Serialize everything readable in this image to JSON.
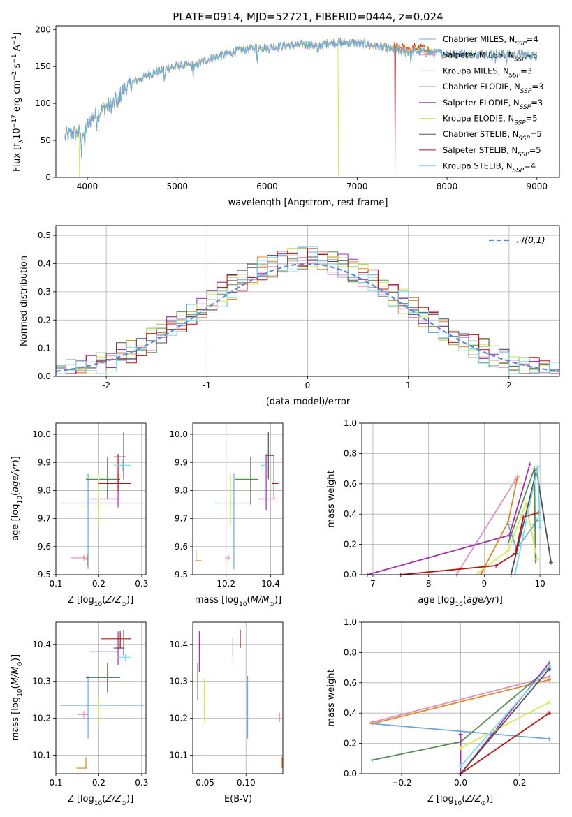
{
  "title": "PLATE=0914, MJD=52721, FIBERID=0444, z=0.024",
  "colors": {
    "c1": "#6fa8d6",
    "c2": "#e58fc0",
    "c3": "#d88a2c",
    "c4": "#5a8a5a",
    "c5": "#a030b0",
    "c6": "#d6e860",
    "c7": "#505050",
    "c8": "#b01818",
    "c9": "#80d8e8",
    "gauss": "#5b8bd9"
  },
  "chart_data": [
    {
      "id": "spectrum",
      "type": "line",
      "xlabel": "wavelength [Angstrom, rest frame]",
      "ylabel": "Flux [f_λ 10^-17 erg cm^-2 s^-1 A^-1]",
      "xlim": [
        3650,
        9250
      ],
      "ylim": [
        0,
        205
      ],
      "xticks": [
        4000,
        5000,
        6000,
        7000,
        8000,
        9000
      ],
      "yticks": [
        0,
        50,
        100,
        150,
        200
      ],
      "series": [
        {
          "name": "Chabrier MILES, N_SSP=4",
          "color": "#6fa8d6"
        },
        {
          "name": "Salpeter MILES, N_SSP=3",
          "color": "#e58fc0"
        },
        {
          "name": "Kroupa MILES, N_SSP=3",
          "color": "#d88a2c"
        },
        {
          "name": "Chabrier ELODIE, N_SSP=3",
          "color": "#5a8a5a"
        },
        {
          "name": "Salpeter ELODIE, N_SSP=3",
          "color": "#a030b0"
        },
        {
          "name": "Kroupa ELODIE, N_SSP=5",
          "color": "#d6e860"
        },
        {
          "name": "Chabrier STELIB, N_SSP=5",
          "color": "#505050"
        },
        {
          "name": "Salpeter STELIB, N_SSP=5",
          "color": "#b01818"
        },
        {
          "name": "Kroupa STELIB, N_SSP=4",
          "color": "#80d8e8"
        }
      ],
      "continuum": [
        [
          3750,
          55
        ],
        [
          3850,
          60
        ],
        [
          3950,
          60
        ],
        [
          4050,
          80
        ],
        [
          4200,
          95
        ],
        [
          4300,
          100
        ],
        [
          4400,
          118
        ],
        [
          4500,
          128
        ],
        [
          4700,
          140
        ],
        [
          4900,
          148
        ],
        [
          5100,
          152
        ],
        [
          5200,
          150
        ],
        [
          5300,
          158
        ],
        [
          5500,
          165
        ],
        [
          5700,
          172
        ],
        [
          5900,
          176
        ],
        [
          6000,
          175
        ],
        [
          6200,
          178
        ],
        [
          6400,
          180
        ],
        [
          6550,
          178
        ],
        [
          6700,
          182
        ],
        [
          6900,
          182
        ],
        [
          7100,
          180
        ],
        [
          7300,
          175
        ],
        [
          7500,
          170
        ],
        [
          7700,
          170
        ],
        [
          7900,
          168
        ],
        [
          8100,
          168
        ],
        [
          8300,
          166
        ],
        [
          8500,
          168
        ],
        [
          8700,
          166
        ],
        [
          8900,
          166
        ],
        [
          9000,
          164
        ]
      ],
      "dropouts": [
        {
          "series": 5,
          "x": 3910
        },
        {
          "series": 5,
          "x": 6790
        },
        {
          "series": 7,
          "x": 7420
        }
      ]
    },
    {
      "id": "residuals",
      "type": "line",
      "xlabel": "(data-model)/error",
      "ylabel": "Normed distribution",
      "xlim": [
        -2.5,
        2.5
      ],
      "ylim": [
        0,
        0.535
      ],
      "xticks": [
        -2,
        -1,
        0,
        1,
        2
      ],
      "yticks": [
        0.0,
        0.1,
        0.2,
        0.3,
        0.4,
        0.5
      ],
      "legend": "𝒩(0,1)"
    },
    {
      "id": "age-vs-Z",
      "type": "scatter",
      "xlabel": "Z [log10(Z/Z☉)]",
      "ylabel": "age  [log10(age/yr)]",
      "xlim": [
        0.1,
        0.31
      ],
      "ylim": [
        9.5,
        10.04
      ],
      "xticks": [
        0.1,
        0.2,
        0.3
      ],
      "yticks": [
        9.5,
        9.6,
        9.7,
        9.8,
        9.9,
        10.0
      ],
      "points": [
        {
          "c": 0,
          "x": 0.175,
          "y": 9.755,
          "xl": 0.11,
          "xh": 0.305,
          "yl": 9.52,
          "yh": 9.86
        },
        {
          "c": 1,
          "x": 0.165,
          "y": 9.56,
          "xl": 0.135,
          "xh": 0.175,
          "yl": 9.55,
          "yh": 9.57
        },
        {
          "c": 2,
          "x": 0.173,
          "y": 9.555,
          "xl": 0.168,
          "xh": 0.178,
          "yl": 9.53,
          "yh": 9.575
        },
        {
          "c": 3,
          "x": 0.22,
          "y": 9.84,
          "xl": 0.17,
          "xh": 0.25,
          "yl": 9.77,
          "yh": 9.92
        },
        {
          "c": 4,
          "x": 0.245,
          "y": 9.77,
          "xl": 0.18,
          "xh": 0.245,
          "yl": 9.74,
          "yh": 9.86
        },
        {
          "c": 5,
          "x": 0.2,
          "y": 9.745,
          "xl": 0.155,
          "xh": 0.22,
          "yl": 9.68,
          "yh": 9.86
        },
        {
          "c": 6,
          "x": 0.258,
          "y": 9.92,
          "xl": 0.235,
          "xh": 0.262,
          "yl": 9.84,
          "yh": 10.01
        },
        {
          "c": 7,
          "x": 0.245,
          "y": 9.825,
          "xl": 0.2,
          "xh": 0.275,
          "yl": 9.8,
          "yh": 9.93
        },
        {
          "c": 8,
          "x": 0.255,
          "y": 9.89,
          "xl": 0.235,
          "xh": 0.275,
          "yl": 9.87,
          "yh": 9.91
        }
      ]
    },
    {
      "id": "age-vs-mass",
      "type": "scatter",
      "xlabel": "mass [log10(M/M☉)]",
      "xlim": [
        10.05,
        10.455
      ],
      "ylim": [
        9.5,
        10.04
      ],
      "xticks": [
        10.2,
        10.4
      ],
      "yticks": [
        9.5,
        9.6,
        9.7,
        9.8,
        9.9,
        10.0
      ],
      "points": [
        {
          "c": 0,
          "x": 10.235,
          "y": 9.755,
          "xl": 10.15,
          "xh": 10.31,
          "yl": 9.52,
          "yh": 9.86
        },
        {
          "c": 1,
          "x": 10.21,
          "y": 9.56,
          "xl": 10.195,
          "xh": 10.22,
          "yl": 9.55,
          "yh": 9.57
        },
        {
          "c": 2,
          "x": 10.065,
          "y": 9.55,
          "xl": 10.06,
          "xh": 10.09,
          "yl": 9.55,
          "yh": 9.59
        },
        {
          "c": 3,
          "x": 10.31,
          "y": 9.84,
          "xl": 10.24,
          "xh": 10.345,
          "yl": 9.75,
          "yh": 9.92
        },
        {
          "c": 4,
          "x": 10.38,
          "y": 9.77,
          "xl": 10.34,
          "xh": 10.425,
          "yl": 9.73,
          "yh": 9.93
        },
        {
          "c": 5,
          "x": 10.22,
          "y": 9.745,
          "xl": 10.2,
          "xh": 10.25,
          "yl": 9.68,
          "yh": 9.86
        },
        {
          "c": 6,
          "x": 10.39,
          "y": 9.925,
          "xl": 10.38,
          "xh": 10.415,
          "yl": 9.84,
          "yh": 10.01
        },
        {
          "c": 7,
          "x": 10.415,
          "y": 9.825,
          "xl": 10.405,
          "xh": 10.435,
          "yl": 9.77,
          "yh": 9.93
        },
        {
          "c": 8,
          "x": 10.365,
          "y": 9.89,
          "xl": 10.355,
          "xh": 10.38,
          "yl": 9.87,
          "yh": 9.91
        }
      ]
    },
    {
      "id": "weight-vs-age",
      "type": "line",
      "xlabel": "age  [log10(age/yr)]",
      "ylabel": "mass weight",
      "xlim": [
        6.8,
        10.35
      ],
      "ylim": [
        0,
        1.0
      ],
      "xticks": [
        7,
        8,
        9,
        10
      ],
      "yticks": [
        0.0,
        0.2,
        0.4,
        0.6,
        0.8,
        1.0
      ],
      "series": [
        {
          "c": 0,
          "pts": [
            [
              9.43,
              0.33
            ],
            [
              9.58,
              0.17
            ],
            [
              9.9,
              0.33
            ],
            [
              9.95,
              0.36
            ],
            [
              10.0,
              0.36
            ]
          ]
        },
        {
          "c": 1,
          "pts": [
            [
              8.5,
              0.0
            ],
            [
              9.57,
              0.63
            ],
            [
              9.6,
              0.64
            ]
          ]
        },
        {
          "c": 2,
          "pts": [
            [
              8.95,
              0.01
            ],
            [
              9.43,
              0.35
            ],
            [
              9.6,
              0.65
            ]
          ]
        },
        {
          "c": 3,
          "pts": [
            [
              9.43,
              0.21
            ],
            [
              9.9,
              0.7
            ],
            [
              9.92,
              0.09
            ]
          ]
        },
        {
          "c": 4,
          "pts": [
            [
              6.9,
              0.0
            ],
            [
              9.45,
              0.26
            ],
            [
              9.82,
              0.73
            ]
          ]
        },
        {
          "c": 5,
          "pts": [
            [
              8.88,
              0.01
            ],
            [
              9.43,
              0.16
            ],
            [
              9.75,
              0.47
            ],
            [
              9.95,
              0.1
            ]
          ]
        },
        {
          "c": 6,
          "pts": [
            [
              9.48,
              0.0
            ],
            [
              9.94,
              0.69
            ],
            [
              10.2,
              0.08
            ]
          ]
        },
        {
          "c": 7,
          "pts": [
            [
              7.5,
              0.0
            ],
            [
              9.21,
              0.06
            ],
            [
              9.56,
              0.14
            ],
            [
              9.7,
              0.38
            ],
            [
              9.98,
              0.41
            ]
          ]
        },
        {
          "c": 8,
          "pts": [
            [
              9.55,
              0.0
            ],
            [
              9.96,
              0.71
            ],
            [
              10.0,
              0.31
            ]
          ]
        }
      ]
    },
    {
      "id": "mass-vs-Z",
      "type": "scatter",
      "xlabel": "Z [log10(Z/Z☉)]",
      "ylabel": "mass [log10(M/M☉)]",
      "xlim": [
        0.1,
        0.31
      ],
      "ylim": [
        10.05,
        10.46
      ],
      "xticks": [
        0.1,
        0.2,
        0.3
      ],
      "yticks": [
        10.1,
        10.2,
        10.3,
        10.4
      ],
      "points": [
        {
          "c": 0,
          "x": 0.175,
          "y": 10.235,
          "xl": 0.11,
          "xh": 0.305,
          "yl": 10.145,
          "yh": 10.315
        },
        {
          "c": 1,
          "x": 0.165,
          "y": 10.21,
          "xl": 0.15,
          "xh": 0.175,
          "yl": 10.2,
          "yh": 10.22
        },
        {
          "c": 2,
          "x": 0.17,
          "y": 10.065,
          "xl": 0.148,
          "xh": 0.172,
          "yl": 10.065,
          "yh": 10.095
        },
        {
          "c": 3,
          "x": 0.22,
          "y": 10.31,
          "xl": 0.17,
          "xh": 0.25,
          "yl": 10.27,
          "yh": 10.35
        },
        {
          "c": 4,
          "x": 0.245,
          "y": 10.38,
          "xl": 0.18,
          "xh": 0.245,
          "yl": 10.345,
          "yh": 10.435
        },
        {
          "c": 5,
          "x": 0.2,
          "y": 10.225,
          "xl": 0.17,
          "xh": 0.235,
          "yl": 10.19,
          "yh": 10.255
        },
        {
          "c": 6,
          "x": 0.258,
          "y": 10.39,
          "xl": 0.235,
          "xh": 0.26,
          "yl": 10.37,
          "yh": 10.44
        },
        {
          "c": 7,
          "x": 0.25,
          "y": 10.415,
          "xl": 0.205,
          "xh": 0.275,
          "yl": 10.39,
          "yh": 10.435
        },
        {
          "c": 8,
          "x": 0.262,
          "y": 10.365,
          "xl": 0.245,
          "xh": 0.275,
          "yl": 10.355,
          "yh": 10.375
        }
      ]
    },
    {
      "id": "mass-vs-ebv",
      "type": "scatter",
      "xlabel": "E(B-V)",
      "xlim": [
        0.035,
        0.145
      ],
      "ylim": [
        10.05,
        10.46
      ],
      "xticks": [
        0.05,
        0.1
      ],
      "xticklabels": [
        "0.05",
        "0.10"
      ],
      "yticks": [
        10.1,
        10.2,
        10.3,
        10.4
      ],
      "points": [
        {
          "c": 0,
          "x": 0.102,
          "y": 10.235,
          "yl": 10.145,
          "yh": 10.315
        },
        {
          "c": 1,
          "x": 0.141,
          "y": 10.21,
          "yl": 10.19,
          "yh": 10.215
        },
        {
          "c": 2,
          "x": 0.144,
          "y": 10.075,
          "yl": 10.065,
          "yh": 10.095
        },
        {
          "c": 3,
          "x": 0.041,
          "y": 10.31,
          "yl": 10.25,
          "yh": 10.35
        },
        {
          "c": 4,
          "x": 0.043,
          "y": 10.38,
          "yl": 10.325,
          "yh": 10.435
        },
        {
          "c": 5,
          "x": 0.049,
          "y": 10.225,
          "yl": 10.19,
          "yh": 10.305
        },
        {
          "c": 6,
          "x": 0.084,
          "y": 10.39,
          "yl": 10.37,
          "yh": 10.42
        },
        {
          "c": 7,
          "x": 0.093,
          "y": 10.415,
          "yl": 10.39,
          "yh": 10.44
        },
        {
          "c": 8,
          "x": 0.084,
          "y": 10.365,
          "yl": 10.35,
          "yh": 10.375
        }
      ]
    },
    {
      "id": "weight-vs-Z",
      "type": "line",
      "xlabel": "Z [log10(Z/Z☉)]",
      "ylabel": "mass weight",
      "xlim": [
        -0.335,
        0.335
      ],
      "ylim": [
        0,
        1.0
      ],
      "xticks": [
        -0.2,
        0.0,
        0.2
      ],
      "xticklabels": [
        "−0.2",
        "0.0",
        "0.2"
      ],
      "yticks": [
        0.0,
        0.2,
        0.4,
        0.6,
        0.8,
        1.0
      ],
      "series": [
        {
          "c": 0,
          "pts": [
            [
              -0.3,
              0.33
            ],
            [
              0.3,
              0.23
            ]
          ]
        },
        {
          "c": 1,
          "pts": [
            [
              -0.3,
              0.34
            ],
            [
              0.3,
              0.64
            ]
          ]
        },
        {
          "c": 2,
          "pts": [
            [
              -0.3,
              0.33
            ],
            [
              0.3,
              0.62
            ]
          ]
        },
        {
          "c": 3,
          "pts": [
            [
              -0.3,
              0.09
            ],
            [
              0.0,
              0.21
            ],
            [
              0.3,
              0.7
            ]
          ]
        },
        {
          "c": 4,
          "pts": [
            [
              0.0,
              0.26
            ],
            [
              0.0,
              0.0
            ],
            [
              0.3,
              0.73
            ]
          ]
        },
        {
          "c": 5,
          "pts": [
            [
              0.0,
              0.17
            ],
            [
              0.3,
              0.47
            ]
          ]
        },
        {
          "c": 6,
          "pts": [
            [
              0.0,
              0.0
            ],
            [
              0.3,
              0.69
            ]
          ]
        },
        {
          "c": 7,
          "pts": [
            [
              0.0,
              0.0
            ],
            [
              0.3,
              0.4
            ]
          ]
        },
        {
          "c": 8,
          "pts": [
            [
              0.0,
              0.05
            ],
            [
              0.3,
              0.71
            ]
          ]
        }
      ]
    }
  ]
}
